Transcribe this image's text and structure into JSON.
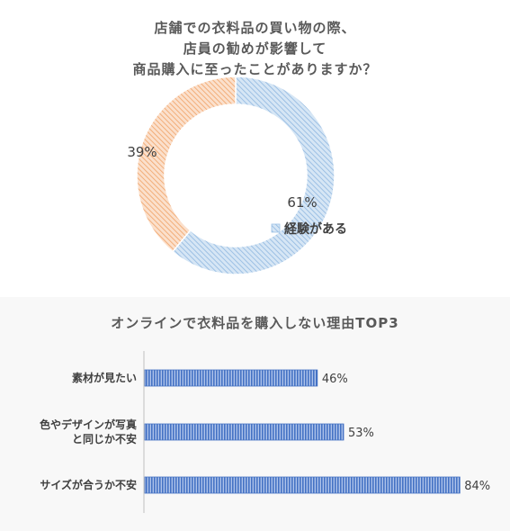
{
  "chart_data": [
    {
      "type": "pie",
      "donut": true,
      "title_lines": [
        "店舗での衣料品の買い物の際、",
        "店員の勧めが影響して",
        "商品購入に至ったことがありますか？"
      ],
      "slices": [
        {
          "label": "経験がある",
          "value": 61,
          "value_label": "61%",
          "color": "#9dc3e6"
        },
        {
          "label": "",
          "value": 39,
          "value_label": "39%",
          "color": "#f4b183"
        }
      ],
      "legend": {
        "position": "right",
        "entries": [
          "経験がある"
        ]
      }
    },
    {
      "type": "bar",
      "orientation": "horizontal",
      "title": "オンラインで衣料品を購入しない理由TOP3",
      "categories": [
        "素材が見たい",
        "色やデザインが写真と同じか不安",
        "サイズが合うか不安"
      ],
      "category_lines": [
        [
          "素材が見たい"
        ],
        [
          "色やデザインが写真",
          "と同じか不安"
        ],
        [
          "サイズが合うか不安"
        ]
      ],
      "values": [
        46,
        53,
        84
      ],
      "value_labels": [
        "46%",
        "53%",
        "84%"
      ],
      "xlim": [
        0,
        100
      ],
      "color": "#4472c4"
    }
  ]
}
